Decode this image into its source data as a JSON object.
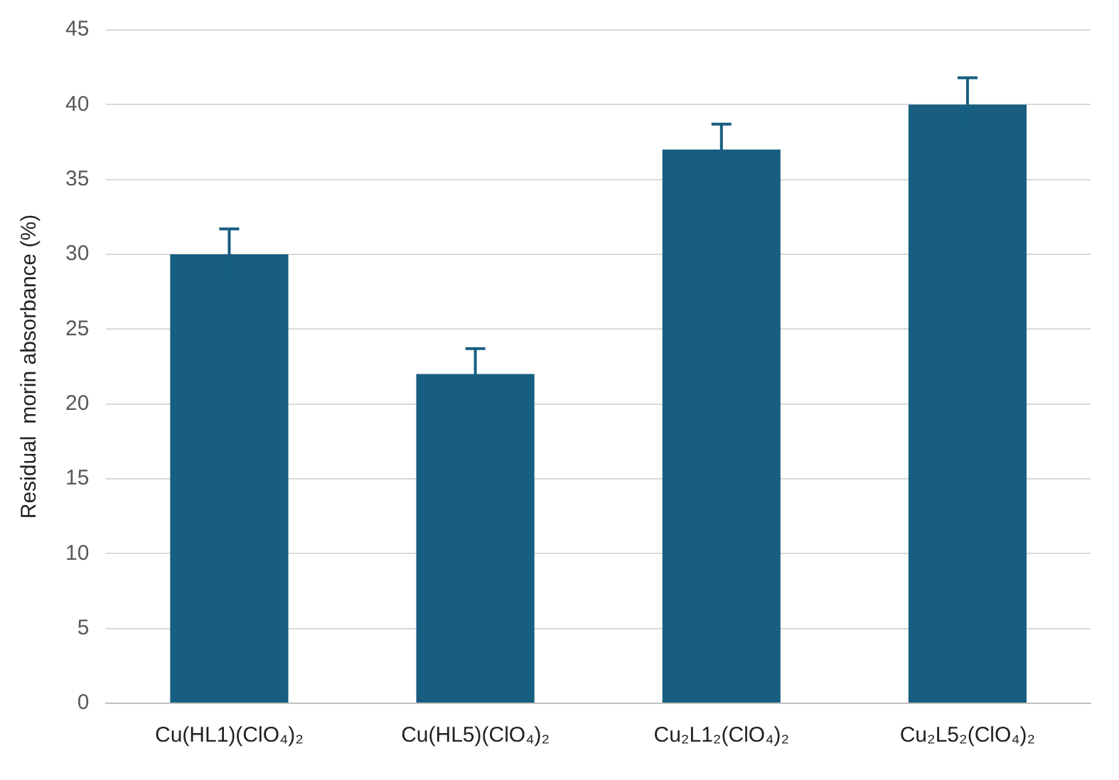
{
  "chart_data": {
    "type": "bar",
    "ylabel": "Residual  morin absorbance (%)",
    "categories": [
      "Cu(HL1)(ClO₄)₂",
      "Cu(HL5)(ClO₄)₂",
      "Cu₂L1₂(ClO₄)₂",
      "Cu₂L5₂(ClO₄)₂"
    ],
    "values": [
      30,
      22,
      37,
      40
    ],
    "errors": [
      1.7,
      1.7,
      1.7,
      1.8
    ],
    "color": "#175e81",
    "ylim": [
      0,
      45
    ],
    "yticks": [
      0,
      5,
      10,
      15,
      20,
      25,
      30,
      35,
      40,
      45
    ],
    "grid": "y",
    "legend": false
  }
}
